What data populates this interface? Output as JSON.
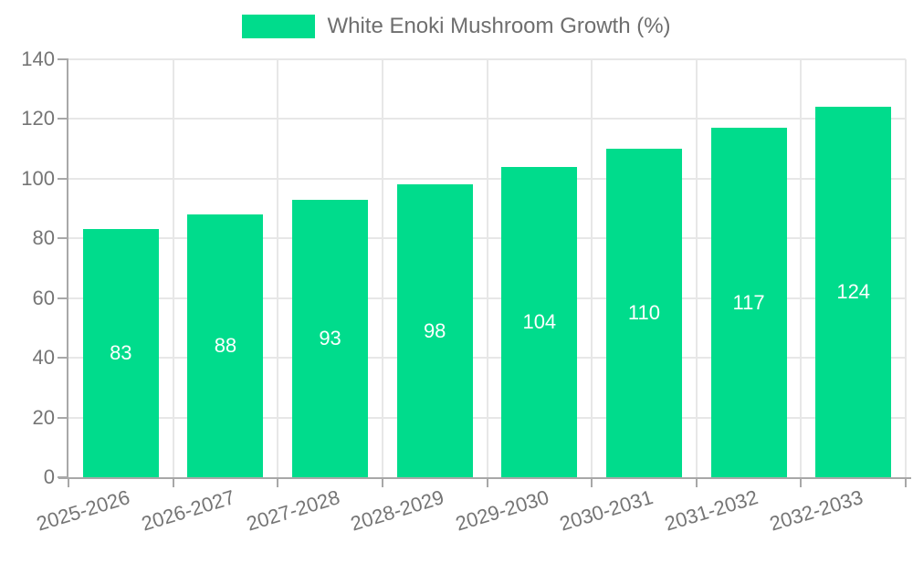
{
  "chart_data": {
    "type": "bar",
    "title": "",
    "xlabel": "",
    "ylabel": "",
    "categories": [
      "2025-2026",
      "2026-2027",
      "2027-2028",
      "2028-2029",
      "2029-2030",
      "2030-2031",
      "2031-2032",
      "2032-2033"
    ],
    "series": [
      {
        "name": "White Enoki Mushroom Growth (%)",
        "values": [
          83,
          88,
          93,
          98,
          104,
          110,
          117,
          124
        ],
        "color": "#00DC8C"
      }
    ],
    "ylim": [
      0,
      140
    ],
    "ytick_interval": 20,
    "ytick_labels": [
      "0",
      "20",
      "40",
      "60",
      "80",
      "100",
      "120",
      "140"
    ],
    "grid": "horizontal-and-vertical",
    "legend_position": "top-center",
    "bar_value_labels": "inside-middle"
  },
  "colors": {
    "bar": "#00DC8C",
    "grid": "#e7e7e7",
    "axis": "#a8a8a8",
    "tick_text": "#757575",
    "legend_text": "#6e6e6e",
    "bar_label_text": "#ffffff",
    "background": "#ffffff"
  }
}
